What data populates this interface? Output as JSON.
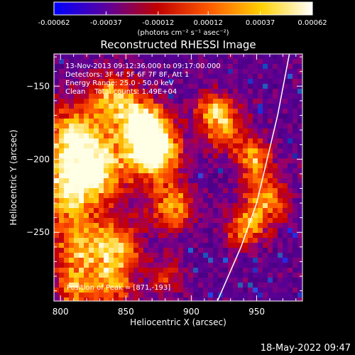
{
  "chart_data": {
    "type": "heatmap",
    "title": "Reconstructed RHESSI Image",
    "xlabel": "Heliocentric X (arcsec)",
    "ylabel": "Heliocentric Y (arcsec)",
    "xlim": [
      795,
      985
    ],
    "ylim": [
      -297,
      -128
    ],
    "x_ticks": [
      "800",
      "850",
      "900",
      "950"
    ],
    "y_ticks": [
      "-150",
      "-200",
      "-250"
    ],
    "colorbar": {
      "range": [
        -0.00062,
        0.00062
      ],
      "tick_labels": [
        "-0.00062",
        "-0.00037",
        "-0.00012",
        "0.00012",
        "0.00037",
        "0.00062"
      ],
      "units": "(photons cm⁻² s⁻¹ asec⁻²)",
      "stops": [
        "#0000ff",
        "#5a00a0",
        "#c00000",
        "#ff5a00",
        "#ffd000",
        "#ffffff"
      ]
    },
    "annotations": [
      "13-Nov-2013 09:12:36.000 to 09:17:00.000",
      "Detectors: 3F 4F 5F 6F 7F 8F, Att 1",
      "Energy Range: 25.0 - 50.0 keV",
      "Clean    Total counts: 1.49E+04",
      "Position of Peak = [871,-193]"
    ],
    "peak": {
      "x": 871,
      "y": -193
    },
    "bright_sources": [
      {
        "x": 871,
        "y": -193,
        "intensity": 1.0,
        "radius": 14
      },
      {
        "x": 862,
        "y": -175,
        "intensity": 0.72,
        "radius": 12
      },
      {
        "x": 812,
        "y": -188,
        "intensity": 0.82,
        "radius": 18
      },
      {
        "x": 805,
        "y": -222,
        "intensity": 0.65,
        "radius": 14
      },
      {
        "x": 840,
        "y": -158,
        "intensity": 0.6,
        "radius": 12
      },
      {
        "x": 833,
        "y": -210,
        "intensity": 0.55,
        "radius": 15
      },
      {
        "x": 885,
        "y": -232,
        "intensity": 0.6,
        "radius": 12
      },
      {
        "x": 815,
        "y": -260,
        "intensity": 0.6,
        "radius": 16
      },
      {
        "x": 845,
        "y": -258,
        "intensity": 0.55,
        "radius": 12
      },
      {
        "x": 840,
        "y": -285,
        "intensity": 0.55,
        "radius": 12
      },
      {
        "x": 810,
        "y": -290,
        "intensity": 0.5,
        "radius": 10
      },
      {
        "x": 925,
        "y": -177,
        "intensity": 0.58,
        "radius": 12
      },
      {
        "x": 948,
        "y": -200,
        "intensity": 0.58,
        "radius": 10
      },
      {
        "x": 958,
        "y": -228,
        "intensity": 0.62,
        "radius": 12
      },
      {
        "x": 940,
        "y": -248,
        "intensity": 0.55,
        "radius": 10
      },
      {
        "x": 915,
        "y": -165,
        "intensity": 0.42,
        "radius": 8
      },
      {
        "x": 880,
        "y": -280,
        "intensity": 0.35,
        "radius": 10
      }
    ],
    "limb_arc": [
      [
        920,
        -297
      ],
      [
        938,
        -260
      ],
      [
        950,
        -230
      ],
      [
        958,
        -200
      ],
      [
        966,
        -170
      ],
      [
        975,
        -128
      ]
    ]
  },
  "footer": {
    "date": "18-May-2022 09:47"
  }
}
